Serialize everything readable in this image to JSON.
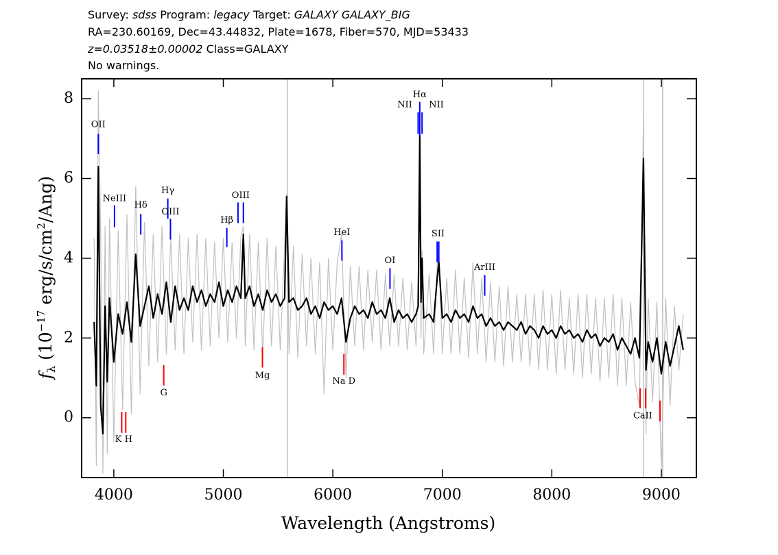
{
  "chart_data": {
    "type": "line",
    "header": [
      [
        "Survey: ",
        "sdss",
        " Program: ",
        "legacy",
        " Target: ",
        "GALAXY GALAXY_BIG"
      ],
      [
        "RA=230.60169, Dec=43.44832, Plate=1678, Fiber=570, MJD=53433"
      ],
      [
        "z=0.03518±0.00002",
        " Class=GALAXY"
      ],
      [
        "No warnings."
      ]
    ],
    "xlabel": "Wavelength (Angstroms)",
    "ylabel": [
      "f",
      "λ",
      " (10",
      "−17",
      " erg/s/cm",
      "2",
      "/Ang)"
    ],
    "xlim": [
      3706,
      9320
    ],
    "ylim": [
      -1.5,
      8.5
    ],
    "xticks": [
      4000,
      5000,
      6000,
      7000,
      8000,
      9000
    ],
    "yticks": [
      0,
      2,
      4,
      6,
      8
    ],
    "sky_lines": {
      "color": "#c0c0c0",
      "x": [
        5585,
        8837,
        9012
      ]
    },
    "x": [
      3820,
      3840,
      3858,
      3880,
      3900,
      3920,
      3940,
      3960,
      4000,
      4040,
      4080,
      4120,
      4160,
      4200,
      4240,
      4280,
      4320,
      4360,
      4400,
      4440,
      4480,
      4520,
      4560,
      4600,
      4640,
      4680,
      4720,
      4760,
      4800,
      4840,
      4880,
      4920,
      4960,
      5000,
      5040,
      5080,
      5120,
      5160,
      5183,
      5200,
      5240,
      5280,
      5320,
      5360,
      5400,
      5440,
      5480,
      5520,
      5560,
      5578,
      5600,
      5640,
      5680,
      5720,
      5760,
      5800,
      5840,
      5880,
      5920,
      5960,
      6000,
      6040,
      6080,
      6120,
      6160,
      6200,
      6240,
      6280,
      6320,
      6360,
      6400,
      6440,
      6480,
      6520,
      6560,
      6600,
      6640,
      6680,
      6720,
      6760,
      6780,
      6794,
      6805,
      6815,
      6830,
      6880,
      6920,
      6953,
      6968,
      7000,
      7040,
      7080,
      7120,
      7160,
      7200,
      7240,
      7280,
      7320,
      7360,
      7400,
      7440,
      7480,
      7520,
      7560,
      7600,
      7640,
      7680,
      7720,
      7760,
      7800,
      7840,
      7880,
      7920,
      7960,
      8000,
      8040,
      8080,
      8120,
      8160,
      8200,
      8240,
      8280,
      8320,
      8360,
      8400,
      8440,
      8480,
      8520,
      8560,
      8600,
      8640,
      8680,
      8720,
      8760,
      8800,
      8837,
      8860,
      8880,
      8920,
      8960,
      9000,
      9040,
      9080,
      9120,
      9160,
      9200
    ],
    "series": [
      {
        "color": "#c0c0c0",
        "values": [
          4.5,
          -1.2,
          8.2,
          4.6,
          -1.4,
          4.8,
          -0.9,
          5.0,
          -0.6,
          4.7,
          0.2,
          5.1,
          0.1,
          5.8,
          0.6,
          4.9,
          1.3,
          4.6,
          1.4,
          4.8,
          1.6,
          4.5,
          1.7,
          4.6,
          1.6,
          4.5,
          1.9,
          4.6,
          1.7,
          4.5,
          1.8,
          4.4,
          2.0,
          4.5,
          1.9,
          4.4,
          2.0,
          4.5,
          4.8,
          1.8,
          4.6,
          1.7,
          4.4,
          1.6,
          4.5,
          1.8,
          4.3,
          1.7,
          4.3,
          5.6,
          1.6,
          4.3,
          1.5,
          4.1,
          1.8,
          4.0,
          1.6,
          3.9,
          0.6,
          4.0,
          1.7,
          3.9,
          4.6,
          1.0,
          3.8,
          1.8,
          3.8,
          1.7,
          3.7,
          1.9,
          3.7,
          1.7,
          3.6,
          1.8,
          3.6,
          1.8,
          3.5,
          1.7,
          3.4,
          1.8,
          3.6,
          7.2,
          2.0,
          4.2,
          1.6,
          3.6,
          1.6,
          3.8,
          4.2,
          1.6,
          3.5,
          1.6,
          3.7,
          1.6,
          3.5,
          1.5,
          3.9,
          1.6,
          3.5,
          1.4,
          3.4,
          1.4,
          3.3,
          1.3,
          3.3,
          1.4,
          3.1,
          1.4,
          3.1,
          1.3,
          3.1,
          1.2,
          3.2,
          1.2,
          3.1,
          1.1,
          3.2,
          1.2,
          3.0,
          1.1,
          3.1,
          1.0,
          3.1,
          1.1,
          3.0,
          0.9,
          3.0,
          1.0,
          3.1,
          0.8,
          3.0,
          0.8,
          2.9,
          0.9,
          0.3,
          7.6,
          -0.4,
          3.0,
          0.4,
          2.9,
          -1.3,
          3.0,
          0.3,
          2.8,
          1.2,
          2.6
        ]
      },
      {
        "color": "#000000",
        "values": [
          2.4,
          0.8,
          6.3,
          0.3,
          -0.4,
          2.8,
          0.9,
          3.0,
          1.4,
          2.6,
          2.1,
          2.9,
          1.9,
          4.1,
          2.3,
          2.8,
          3.3,
          2.5,
          3.1,
          2.6,
          3.4,
          2.4,
          3.3,
          2.7,
          3.0,
          2.7,
          3.3,
          2.9,
          3.2,
          2.8,
          3.1,
          2.9,
          3.4,
          2.8,
          3.2,
          2.9,
          3.3,
          3.0,
          4.6,
          3.0,
          3.3,
          2.8,
          3.1,
          2.7,
          3.2,
          2.9,
          3.1,
          2.8,
          3.0,
          5.55,
          2.9,
          3.0,
          2.7,
          2.8,
          3.0,
          2.6,
          2.8,
          2.5,
          2.9,
          2.7,
          2.8,
          2.6,
          3.0,
          1.9,
          2.5,
          2.8,
          2.6,
          2.7,
          2.5,
          2.9,
          2.6,
          2.7,
          2.5,
          3.0,
          2.4,
          2.7,
          2.5,
          2.6,
          2.4,
          2.6,
          2.8,
          7.1,
          2.9,
          4.0,
          2.5,
          2.6,
          2.4,
          3.5,
          3.9,
          2.5,
          2.6,
          2.4,
          2.7,
          2.5,
          2.6,
          2.4,
          2.8,
          2.5,
          2.6,
          2.3,
          2.5,
          2.3,
          2.4,
          2.2,
          2.4,
          2.3,
          2.2,
          2.4,
          2.1,
          2.3,
          2.2,
          2.0,
          2.3,
          2.1,
          2.2,
          2.0,
          2.3,
          2.1,
          2.2,
          2.0,
          2.1,
          1.9,
          2.2,
          2.0,
          2.1,
          1.8,
          2.0,
          1.9,
          2.1,
          1.7,
          2.0,
          1.8,
          1.6,
          2.0,
          1.5,
          6.5,
          1.2,
          1.9,
          1.4,
          2.0,
          1.1,
          1.9,
          1.3,
          1.8,
          2.3,
          1.7
        ]
      }
    ],
    "line_labels": [
      {
        "label": "OII",
        "color": "#0000ff",
        "label_y": 7.35,
        "markers": [
          {
            "x": 3858,
            "y": [
              7.12,
              6.61
            ]
          }
        ]
      },
      {
        "label": "NeIII",
        "color": "#0000ff",
        "label_y": 5.49,
        "markers": [
          {
            "x": 4006,
            "y": [
              5.33,
              4.78
            ]
          }
        ]
      },
      {
        "label": "Hδ",
        "color": "#0000ff",
        "label_y": 5.33,
        "markers": [
          {
            "x": 4246,
            "y": [
              5.11,
              4.59
            ]
          }
        ]
      },
      {
        "label": "Hγ",
        "color": "#0000ff",
        "label_y": 5.69,
        "markers": [
          {
            "x": 4493,
            "y": [
              5.5,
              4.99
            ]
          }
        ]
      },
      {
        "label": "OIII",
        "color": "#0000ff",
        "label_y": 5.16,
        "markers": [
          {
            "x": 4517,
            "y": [
              4.99,
              4.47
            ]
          }
        ]
      },
      {
        "label": "Hβ",
        "color": "#0000ff",
        "label_y": 4.95,
        "markers": [
          {
            "x": 5032,
            "y": [
              4.76,
              4.28
            ]
          }
        ]
      },
      {
        "label": "OIII",
        "color": "#0000ff",
        "label_y": 5.57,
        "markers": [
          {
            "x": 5134,
            "y": [
              5.4,
              4.88
            ]
          },
          {
            "x": 5183,
            "y": [
              5.4,
              4.88
            ]
          }
        ]
      },
      {
        "label": "HeI",
        "color": "#0000ff",
        "label_y": 4.64,
        "markers": [
          {
            "x": 6083,
            "y": [
              4.45,
              3.94
            ]
          }
        ]
      },
      {
        "label": "OI",
        "color": "#0000ff",
        "label_y": 3.94,
        "markers": [
          {
            "x": 6522,
            "y": [
              3.75,
              3.23
            ]
          }
        ]
      },
      {
        "label": "NII",
        "color": "#0000ff",
        "label_y": 7.85,
        "label_x": 6657,
        "markers": [
          {
            "x": 6779,
            "y": [
              7.66,
              7.12
            ]
          }
        ]
      },
      {
        "label": "Hα",
        "color": "#0000ff",
        "label_y": 8.1,
        "markers": [
          {
            "x": 6794,
            "y": [
              7.92,
              7.05
            ]
          }
        ]
      },
      {
        "label": "NII",
        "color": "#0000ff",
        "label_y": 7.85,
        "label_x": 6945,
        "markers": [
          {
            "x": 6815,
            "y": [
              7.66,
              7.12
            ]
          }
        ]
      },
      {
        "label": "SII",
        "color": "#0000ff",
        "label_y": 4.61,
        "markers": [
          {
            "x": 6953,
            "y": [
              4.42,
              3.9
            ]
          },
          {
            "x": 6968,
            "y": [
              4.42,
              3.9
            ]
          }
        ]
      },
      {
        "label": "ArIII",
        "color": "#0000ff",
        "label_y": 3.77,
        "markers": [
          {
            "x": 7387,
            "y": [
              3.58,
              3.06
            ]
          }
        ]
      },
      {
        "label": "K H",
        "color": "#ff0000",
        "label_y": -0.55,
        "markers": [
          {
            "x": 4072,
            "y": [
              0.15,
              -0.38
            ]
          },
          {
            "x": 4109,
            "y": [
              0.15,
              -0.38
            ]
          }
        ]
      },
      {
        "label": "G",
        "color": "#ff0000",
        "label_y": 0.62,
        "markers": [
          {
            "x": 4456,
            "y": [
              1.32,
              0.81
            ]
          }
        ]
      },
      {
        "label": "Mg",
        "color": "#ff0000",
        "label_y": 1.05,
        "markers": [
          {
            "x": 5357,
            "y": [
              1.77,
              1.26
            ]
          }
        ]
      },
      {
        "label": "Na D",
        "color": "#ff0000",
        "label_y": 0.91,
        "markers": [
          {
            "x": 6101,
            "y": [
              1.6,
              1.08
            ]
          }
        ]
      },
      {
        "label": "CaII",
        "color": "#ff0000",
        "label_y": 0.05,
        "label_x": 8831,
        "markers": [
          {
            "x": 8806,
            "y": [
              0.74,
              0.24
            ]
          },
          {
            "x": 8856,
            "y": [
              0.74,
              0.24
            ]
          },
          {
            "x": 8988,
            "y": [
              0.43,
              -0.09
            ]
          }
        ]
      }
    ]
  }
}
